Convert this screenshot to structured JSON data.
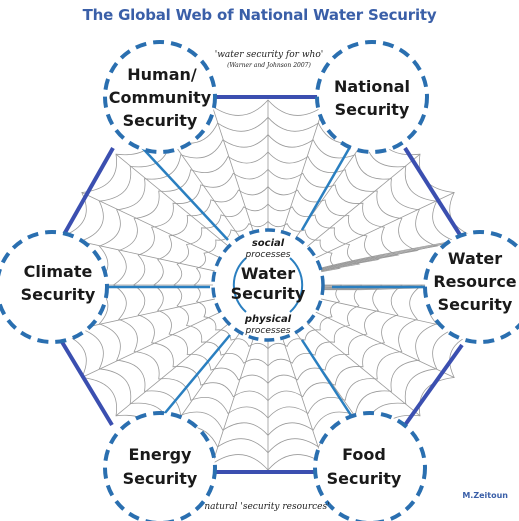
{
  "title": "The Global Web of National Water Security",
  "top_note": {
    "line1": "'water security for who'",
    "line2": "(Warner and Johnson 2007)"
  },
  "bottom_note": "natural 'security resources'",
  "author": "M.Zeitoun",
  "center": {
    "top_italic": "social",
    "top_small": "processes",
    "line1": "Water",
    "line2": "Security",
    "bottom_italic": "physical",
    "bottom_small": "processes"
  },
  "nodes": {
    "human": [
      "Human/",
      "Community",
      "Security"
    ],
    "national": [
      "National",
      "Security"
    ],
    "water_resource": [
      "Water",
      "Resource",
      "Security"
    ],
    "food": [
      "Food",
      "Security"
    ],
    "energy": [
      "Energy",
      "Security"
    ],
    "climate": [
      "Climate",
      "Security"
    ]
  },
  "colors": {
    "title": "#3a5fa8",
    "dashed_circle": "#2a6fb0",
    "hexagon_edge": "#3b4fb0",
    "spoke": "#2a7fc0",
    "web": "#9a9a9a"
  }
}
